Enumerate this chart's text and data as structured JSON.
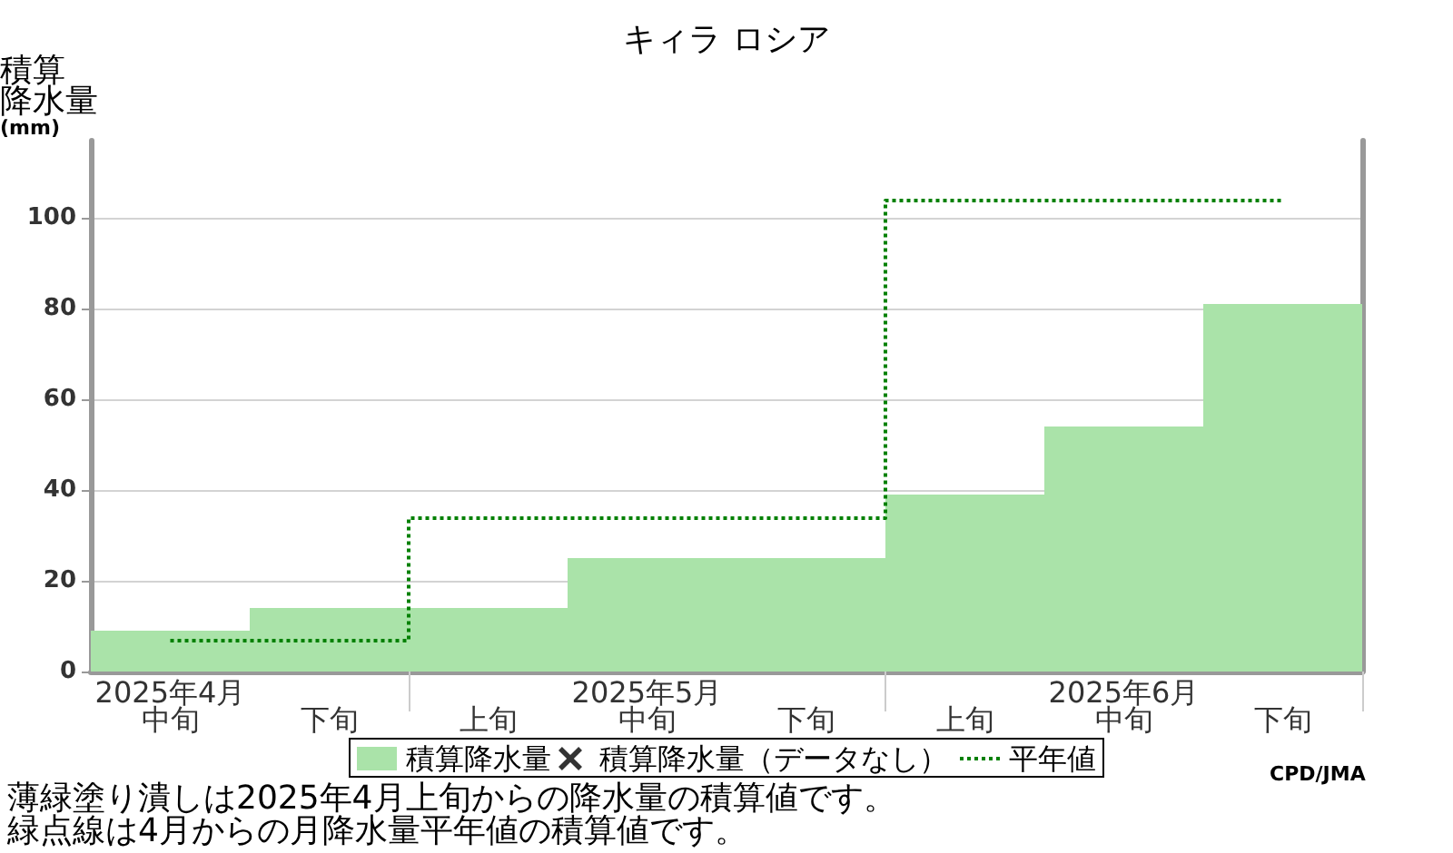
{
  "chart_data": {
    "type": "bar",
    "title": "キィラ ロシア",
    "ylabel": "積算降水量(mm)",
    "categories": [
      "2025年4月中旬",
      "下旬",
      "上旬",
      "2025年5月中旬",
      "下旬",
      "上旬",
      "2025年6月中旬",
      "下旬"
    ],
    "series": [
      {
        "name": "積算降水量",
        "color": "#aae3a9",
        "values": [
          9,
          14,
          14,
          25,
          25,
          39,
          54,
          81
        ]
      },
      {
        "name": "積算降水量（データなし）",
        "type": "scatter",
        "color": "#000000",
        "marker": "cross",
        "values": [
          null,
          null,
          null,
          null,
          null,
          null,
          null,
          null
        ]
      },
      {
        "name": "平年値",
        "type": "step",
        "color": "#008000",
        "line_style": "dotted",
        "values": [
          7,
          7,
          34,
          34,
          34,
          104,
          104,
          104
        ]
      }
    ],
    "ylim": [
      0,
      117
    ],
    "yticks": [
      0,
      20,
      40,
      60,
      80,
      100
    ],
    "grid": "y",
    "legend": "bottom",
    "annotations": [
      "薄緑塗り潰しは2025年4月上旬からの降水量の積算値です。",
      "緑点線は4月からの月降水量平年値の積算値です。",
      "CPD/JMA"
    ]
  }
}
